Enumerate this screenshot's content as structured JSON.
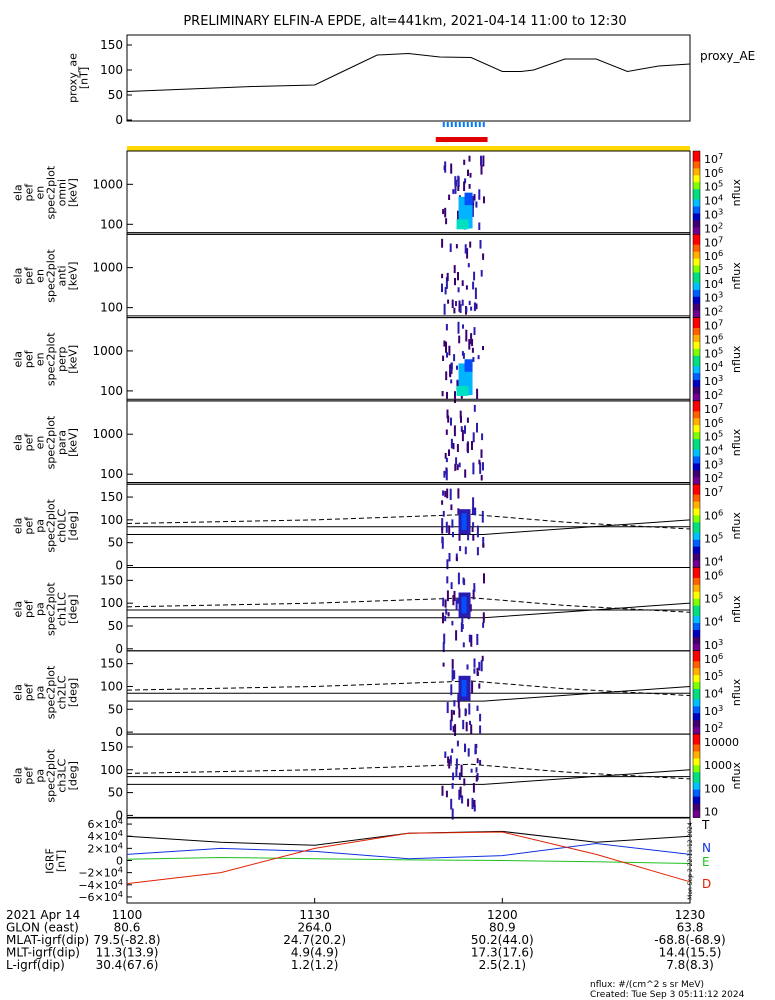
{
  "title": "PRELIMINARY ELFIN-A EPDE, alt=441km, 2021-04-14 11:00 to 12:30",
  "colors": {
    "yellow": "#ffd800",
    "red": "#e00000",
    "blue_ticks": "#0078ff",
    "n_blue": "#1030e0",
    "e_green": "#20c020",
    "d_red": "#e02000"
  },
  "proxy_ae": {
    "ylabel": [
      "proxy_ae",
      "[nT]"
    ],
    "legend": "proxy_AE",
    "yticks": [
      "150",
      "100",
      "50",
      "0"
    ]
  },
  "panels": [
    {
      "ylabel": [
        "ela",
        "pef",
        "en",
        "spec2plot",
        "omni",
        "[keV]"
      ],
      "yticks": [
        "1000",
        "100"
      ],
      "cbar_ticks": [
        "10^7",
        "10^6",
        "10^5",
        "10^4",
        "10^3",
        "10^2"
      ],
      "cbar_label": "nflux"
    },
    {
      "ylabel": [
        "ela",
        "pef",
        "en",
        "spec2plot",
        "anti",
        "[keV]"
      ],
      "yticks": [
        "1000",
        "100"
      ],
      "cbar_ticks": [
        "10^7",
        "10^6",
        "10^5",
        "10^4",
        "10^3",
        "10^2"
      ],
      "cbar_label": "nflux"
    },
    {
      "ylabel": [
        "ela",
        "pef",
        "en",
        "spec2plot",
        "perp",
        "[keV]"
      ],
      "yticks": [
        "1000",
        "100"
      ],
      "cbar_ticks": [
        "10^7",
        "10^6",
        "10^5",
        "10^4",
        "10^3",
        "10^2"
      ],
      "cbar_label": "nflux"
    },
    {
      "ylabel": [
        "ela",
        "pef",
        "en",
        "spec2plot",
        "para",
        "[keV]"
      ],
      "yticks": [
        "1000",
        "100"
      ],
      "cbar_ticks": [
        "10^7",
        "10^6",
        "10^5",
        "10^4",
        "10^3",
        "10^2"
      ],
      "cbar_label": "nflux"
    },
    {
      "ylabel": [
        "ela",
        "pef",
        "pa",
        "spec2plot",
        "ch0LC",
        "[deg]"
      ],
      "yticks": [
        "150",
        "100",
        "50",
        "0"
      ],
      "cbar_ticks": [
        "10^7",
        "10^6",
        "10^5",
        "10^4"
      ],
      "cbar_label": "nflux"
    },
    {
      "ylabel": [
        "ela",
        "pef",
        "pa",
        "spec2plot",
        "ch1LC",
        "[deg]"
      ],
      "yticks": [
        "150",
        "100",
        "50",
        "0"
      ],
      "cbar_ticks": [
        "10^6",
        "10^5",
        "10^4",
        "10^3"
      ],
      "cbar_label": "nflux"
    },
    {
      "ylabel": [
        "ela",
        "pef",
        "pa",
        "spec2plot",
        "ch2LC",
        "[deg]"
      ],
      "yticks": [
        "150",
        "100",
        "50",
        "0"
      ],
      "cbar_ticks": [
        "10^6",
        "10^5",
        "10^4",
        "10^3",
        "10^2"
      ],
      "cbar_label": "nflux"
    },
    {
      "ylabel": [
        "ela",
        "pef",
        "pa",
        "spec2plot",
        "ch3LC",
        "[deg]"
      ],
      "yticks": [
        "150",
        "100",
        "50",
        "0"
      ],
      "cbar_ticks": [
        "10000",
        "1000",
        "100",
        "10"
      ],
      "cbar_label": "nflux"
    }
  ],
  "igrf": {
    "ylabel": [
      "IGRF",
      "[nT]"
    ],
    "yticks": [
      "6×10^4",
      "4×10^4",
      "2×10^4",
      "0",
      "−2×10^4",
      "−4×10^4",
      "−6×10^4"
    ],
    "legend": [
      "T",
      "N",
      "E",
      "D"
    ],
    "stamp": "Mon Sep 2 22:11:12 2024"
  },
  "xaxis": {
    "ticks": [
      "1100",
      "1130",
      "1200",
      "1230"
    ],
    "rows": [
      {
        "label": "2021 Apr 14",
        "values": [
          "1100",
          "1130",
          "1200",
          "1230"
        ]
      },
      {
        "label": "GLON (east)",
        "values": [
          "80.6",
          "264.0",
          "80.9",
          "63.8"
        ]
      },
      {
        "label": "MLAT-igrf(dip)",
        "values": [
          "79.5(-82.8)",
          "24.7(20.2)",
          "50.2(44.0)",
          "-68.8(-68.9)"
        ]
      },
      {
        "label": "MLT-igrf(dip)",
        "values": [
          "11.3(13.9)",
          "4.9(4.9)",
          "17.3(17.6)",
          "14.4(15.5)"
        ]
      },
      {
        "label": "L-igrf(dip)",
        "values": [
          "30.4(67.6)",
          "1.2(1.2)",
          "2.5(2.1)",
          "7.8(8.3)"
        ]
      }
    ]
  },
  "footer": {
    "units": "nflux: #/(cm^2 s sr MeV)",
    "created": "Created: Tue Sep  3 05:11:12 2024"
  },
  "chart_data": {
    "type": "line",
    "title": "PRELIMINARY ELFIN-A EPDE, alt=441km, 2021-04-14 11:00 to 12:30",
    "time_range": [
      "11:00",
      "12:30"
    ],
    "proxy_ae": {
      "x": [
        "11:00",
        "11:10",
        "11:20",
        "11:30",
        "11:35",
        "11:40",
        "11:45",
        "11:50",
        "11:55",
        "12:00",
        "12:03",
        "12:05",
        "12:10",
        "12:15",
        "12:20",
        "12:25",
        "12:30"
      ],
      "values": [
        57,
        62,
        67,
        70,
        100,
        130,
        133,
        126,
        125,
        97,
        97,
        100,
        122,
        122,
        97,
        108,
        112
      ],
      "ylim": [
        0,
        160
      ]
    },
    "science_interval": [
      "11:50",
      "11:57"
    ],
    "igrf": {
      "ylim": [
        -60000,
        60000
      ],
      "series": [
        {
          "name": "T",
          "x": [
            "11:00",
            "11:15",
            "11:30",
            "11:45",
            "12:00",
            "12:15",
            "12:30"
          ],
          "values": [
            40000,
            30000,
            25000,
            45000,
            48000,
            30000,
            40000
          ]
        },
        {
          "name": "N",
          "x": [
            "11:00",
            "11:15",
            "11:30",
            "11:45",
            "12:00",
            "12:15",
            "12:30"
          ],
          "values": [
            10000,
            20000,
            15000,
            3000,
            8000,
            28000,
            10000
          ]
        },
        {
          "name": "E",
          "x": [
            "11:00",
            "11:15",
            "11:30",
            "11:45",
            "12:00",
            "12:15",
            "12:30"
          ],
          "values": [
            2000,
            5000,
            3000,
            1000,
            0,
            -2000,
            -5000
          ]
        },
        {
          "name": "D",
          "x": [
            "11:00",
            "11:15",
            "11:30",
            "11:45",
            "12:00",
            "12:15",
            "12:30"
          ],
          "values": [
            -38000,
            -20000,
            20000,
            45000,
            47000,
            10000,
            -35000
          ]
        }
      ]
    }
  }
}
